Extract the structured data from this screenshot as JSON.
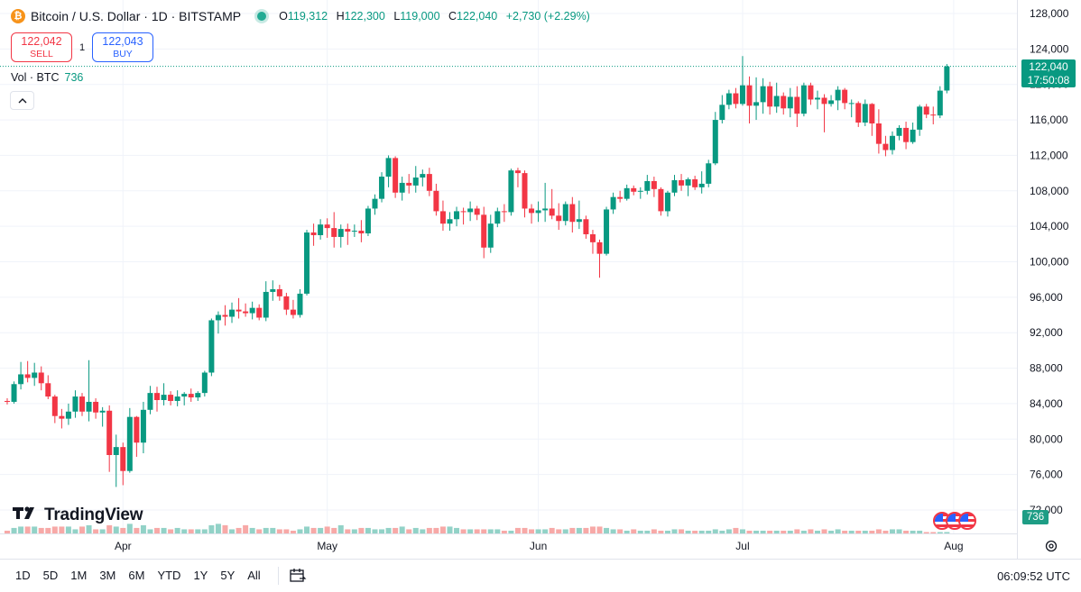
{
  "header": {
    "symbol_title": "Bitcoin / U.S. Dollar · 1D · BITSTAMP",
    "ohlc": {
      "o_label": "O",
      "o": "119,312",
      "h_label": "H",
      "h": "122,300",
      "l_label": "L",
      "l": "119,000",
      "c_label": "C",
      "c": "122,040",
      "change": "+2,730 (+2.29%)"
    }
  },
  "trade": {
    "sell_price": "122,042",
    "sell_label": "SELL",
    "spread": "1",
    "buy_price": "122,043",
    "buy_label": "BUY"
  },
  "volume_legend": {
    "label": "Vol · BTC",
    "value": "736"
  },
  "price_label": {
    "price": "122,040",
    "countdown": "17:50:08"
  },
  "volume_label": "736",
  "logo": {
    "text": "TradingView"
  },
  "bottom_bar": {
    "ranges": [
      "1D",
      "5D",
      "1M",
      "3M",
      "6M",
      "YTD",
      "1Y",
      "5Y",
      "All"
    ],
    "clock": "06:09:52 UTC"
  },
  "colors": {
    "up": "#089981",
    "down": "#f23645",
    "vol_up": "#92d2c7",
    "vol_down": "#f7a9a7",
    "grid": "#f0f3fa",
    "text": "#131722"
  },
  "chart_data": {
    "type": "candlestick",
    "title": "Bitcoin / U.S. Dollar · 1D · BITSTAMP",
    "interval": "1D",
    "x_labels": [
      {
        "label": "Apr",
        "date": "2025-04-01"
      },
      {
        "label": "May",
        "date": "2025-05-01"
      },
      {
        "label": "Jun",
        "date": "2025-06-01"
      },
      {
        "label": "Jul",
        "date": "2025-07-01"
      },
      {
        "label": "Aug",
        "date": "2025-08-01"
      }
    ],
    "y_ticks": [
      72000,
      76000,
      80000,
      84000,
      88000,
      92000,
      96000,
      100000,
      104000,
      108000,
      112000,
      116000,
      120000,
      124000,
      128000
    ],
    "y_range": [
      71000,
      128500
    ],
    "last_price": 122040,
    "start_date": "2025-03-15",
    "candles": [
      [
        84300,
        84600,
        83900,
        84200
      ],
      [
        84200,
        86500,
        84000,
        86200
      ],
      [
        86200,
        88700,
        85600,
        87300
      ],
      [
        87300,
        88800,
        86400,
        86900
      ],
      [
        86900,
        88600,
        86000,
        87500
      ],
      [
        87500,
        88200,
        85500,
        86300
      ],
      [
        86300,
        87200,
        84500,
        84800
      ],
      [
        84800,
        85000,
        81800,
        82600
      ],
      [
        82600,
        83400,
        81200,
        82300
      ],
      [
        82300,
        84000,
        81600,
        83100
      ],
      [
        83100,
        85500,
        82400,
        84800
      ],
      [
        84800,
        85200,
        82600,
        83100
      ],
      [
        83100,
        88900,
        82000,
        84200
      ],
      [
        84200,
        84600,
        82300,
        83000
      ],
      [
        83000,
        83600,
        81400,
        83200
      ],
      [
        83200,
        83800,
        76300,
        78200
      ],
      [
        78200,
        80500,
        74600,
        79100
      ],
      [
        79100,
        79600,
        74800,
        76400
      ],
      [
        76400,
        83500,
        76200,
        82500
      ],
      [
        82500,
        82600,
        78000,
        79600
      ],
      [
        79600,
        84200,
        78400,
        83300
      ],
      [
        83300,
        86000,
        82800,
        85200
      ],
      [
        85200,
        85900,
        83100,
        84400
      ],
      [
        84400,
        86300,
        83800,
        85000
      ],
      [
        85000,
        85400,
        83800,
        84300
      ],
      [
        84300,
        85500,
        83700,
        84800
      ],
      [
        84800,
        85300,
        83800,
        85100
      ],
      [
        85100,
        85700,
        84200,
        84700
      ],
      [
        84700,
        85400,
        84300,
        85200
      ],
      [
        85200,
        87700,
        84800,
        87500
      ],
      [
        87500,
        93600,
        87100,
        93400
      ],
      [
        93400,
        94400,
        91900,
        94000
      ],
      [
        94000,
        95100,
        92800,
        93800
      ],
      [
        93800,
        95400,
        93100,
        94600
      ],
      [
        94600,
        95900,
        93600,
        94400
      ],
      [
        94400,
        95300,
        93800,
        94200
      ],
      [
        94200,
        95500,
        93500,
        94800
      ],
      [
        94800,
        95200,
        93400,
        93700
      ],
      [
        93700,
        97800,
        93300,
        96600
      ],
      [
        96600,
        97900,
        95600,
        96900
      ],
      [
        96900,
        97400,
        95600,
        96100
      ],
      [
        96100,
        96500,
        94000,
        94600
      ],
      [
        94600,
        95700,
        93600,
        94000
      ],
      [
        94000,
        96900,
        93700,
        96400
      ],
      [
        96400,
        103600,
        96200,
        103300
      ],
      [
        103300,
        104300,
        101800,
        103000
      ],
      [
        103000,
        104800,
        102500,
        104200
      ],
      [
        104200,
        104900,
        102700,
        103800
      ],
      [
        103800,
        105600,
        101600,
        102800
      ],
      [
        102800,
        104200,
        101600,
        103700
      ],
      [
        103700,
        104300,
        101900,
        103400
      ],
      [
        103400,
        104200,
        102800,
        103500
      ],
      [
        103500,
        104700,
        102200,
        103200
      ],
      [
        103200,
        106300,
        102900,
        106000
      ],
      [
        106000,
        107600,
        105300,
        107100
      ],
      [
        107100,
        110100,
        106700,
        109600
      ],
      [
        109600,
        112000,
        108400,
        111700
      ],
      [
        111700,
        111900,
        107200,
        107800
      ],
      [
        107800,
        109600,
        106900,
        108900
      ],
      [
        108900,
        109900,
        107700,
        108600
      ],
      [
        108600,
        110800,
        107800,
        109500
      ],
      [
        109500,
        110400,
        108500,
        109900
      ],
      [
        109900,
        110600,
        107400,
        108000
      ],
      [
        108000,
        108800,
        105200,
        105700
      ],
      [
        105700,
        106900,
        103500,
        104300
      ],
      [
        104300,
        105600,
        103500,
        104800
      ],
      [
        104800,
        106200,
        104000,
        105700
      ],
      [
        105700,
        106100,
        104200,
        105600
      ],
      [
        105600,
        106800,
        104600,
        106000
      ],
      [
        106000,
        106300,
        104700,
        105300
      ],
      [
        105300,
        106200,
        100400,
        101600
      ],
      [
        101600,
        105300,
        101000,
        104300
      ],
      [
        104300,
        106100,
        103900,
        105700
      ],
      [
        105700,
        106500,
        104500,
        105600
      ],
      [
        105600,
        110500,
        105200,
        110300
      ],
      [
        110300,
        110600,
        108400,
        110000
      ],
      [
        110000,
        110300,
        105000,
        106000
      ],
      [
        106000,
        106500,
        104300,
        105500
      ],
      [
        105500,
        106800,
        104500,
        105800
      ],
      [
        105800,
        108900,
        104500,
        106000
      ],
      [
        106000,
        108200,
        104800,
        105200
      ],
      [
        105200,
        106600,
        103600,
        104600
      ],
      [
        104600,
        106800,
        104100,
        106500
      ],
      [
        106500,
        107300,
        103300,
        104500
      ],
      [
        104500,
        106900,
        103700,
        104800
      ],
      [
        104800,
        105200,
        102600,
        103100
      ],
      [
        103100,
        103600,
        100900,
        102200
      ],
      [
        102200,
        102500,
        98200,
        100900
      ],
      [
        100900,
        106200,
        100700,
        105900
      ],
      [
        105900,
        107800,
        105400,
        107300
      ],
      [
        107300,
        108000,
        106700,
        107100
      ],
      [
        107100,
        108700,
        106900,
        108300
      ],
      [
        108300,
        108600,
        107500,
        107900
      ],
      [
        107900,
        108400,
        107100,
        108000
      ],
      [
        108000,
        109800,
        107600,
        109100
      ],
      [
        109100,
        109600,
        107300,
        108200
      ],
      [
        108200,
        108400,
        105200,
        105700
      ],
      [
        105700,
        108000,
        105100,
        107800
      ],
      [
        107800,
        109800,
        107400,
        109200
      ],
      [
        109200,
        109900,
        108000,
        108600
      ],
      [
        108600,
        109500,
        107400,
        109300
      ],
      [
        109300,
        109700,
        108100,
        108400
      ],
      [
        108400,
        110200,
        107700,
        108800
      ],
      [
        108800,
        111500,
        108400,
        111100
      ],
      [
        111100,
        116900,
        110900,
        116000
      ],
      [
        116000,
        118800,
        115600,
        117700
      ],
      [
        117700,
        119400,
        117200,
        119000
      ],
      [
        119000,
        119600,
        117300,
        117800
      ],
      [
        117800,
        123200,
        117600,
        119900
      ],
      [
        119900,
        120900,
        115600,
        117600
      ],
      [
        117600,
        120800,
        116000,
        118000
      ],
      [
        118000,
        120700,
        116700,
        119800
      ],
      [
        119800,
        120300,
        116600,
        117500
      ],
      [
        117500,
        120200,
        116800,
        118700
      ],
      [
        118700,
        119100,
        116600,
        117300
      ],
      [
        117300,
        119600,
        116300,
        118600
      ],
      [
        118600,
        119800,
        115200,
        116700
      ],
      [
        116700,
        120200,
        116400,
        119900
      ],
      [
        119900,
        120200,
        117700,
        118300
      ],
      [
        118300,
        119300,
        117200,
        118500
      ],
      [
        118500,
        118900,
        114600,
        117800
      ],
      [
        117800,
        118800,
        117500,
        118200
      ],
      [
        118200,
        119800,
        117100,
        119400
      ],
      [
        119400,
        119600,
        117200,
        117900
      ],
      [
        117900,
        118300,
        116300,
        117900
      ],
      [
        117900,
        118100,
        115200,
        115700
      ],
      [
        115700,
        118300,
        115300,
        117800
      ],
      [
        117800,
        117900,
        114200,
        115600
      ],
      [
        115600,
        117200,
        112200,
        113300
      ],
      [
        113300,
        114200,
        111900,
        112600
      ],
      [
        112600,
        114700,
        112100,
        114200
      ],
      [
        114200,
        115400,
        113700,
        115100
      ],
      [
        115100,
        115800,
        112700,
        113500
      ],
      [
        113500,
        115700,
        113300,
        114900
      ],
      [
        114900,
        117700,
        114200,
        117500
      ],
      [
        117500,
        117800,
        116200,
        116600
      ],
      [
        116600,
        117500,
        115500,
        116500
      ],
      [
        116500,
        119800,
        116200,
        119300
      ],
      [
        119312,
        122300,
        119000,
        122040
      ]
    ],
    "volumes": [
      2,
      4,
      5,
      5,
      5,
      4,
      4,
      5,
      5,
      5,
      3,
      5,
      6,
      3,
      3,
      6,
      5,
      4,
      7,
      4,
      6,
      3,
      4,
      4,
      3,
      4,
      3,
      3,
      3,
      3,
      6,
      7,
      6,
      3,
      4,
      6,
      4,
      3,
      4,
      4,
      3,
      3,
      2,
      3,
      5,
      4,
      4,
      5,
      4,
      6,
      3,
      3,
      4,
      4,
      3,
      3,
      4,
      4,
      5,
      3,
      4,
      3,
      4,
      4,
      5,
      5,
      4,
      3,
      3,
      3,
      3,
      3,
      3,
      2,
      2,
      4,
      4,
      3,
      3,
      3,
      4,
      3,
      3,
      4,
      4,
      4,
      5,
      5,
      4,
      3,
      3,
      2,
      3,
      2,
      2,
      3,
      2,
      2,
      3,
      3,
      2,
      2,
      2,
      2,
      3,
      2,
      3,
      4,
      3,
      2,
      2,
      2,
      2,
      2,
      2,
      2,
      3,
      2,
      3,
      2,
      3,
      2,
      3,
      2,
      2,
      2,
      2,
      2,
      3,
      2,
      3,
      3,
      2,
      2,
      2,
      1,
      1,
      1,
      1,
      1
    ],
    "volume_y_range": [
      0,
      100
    ]
  }
}
